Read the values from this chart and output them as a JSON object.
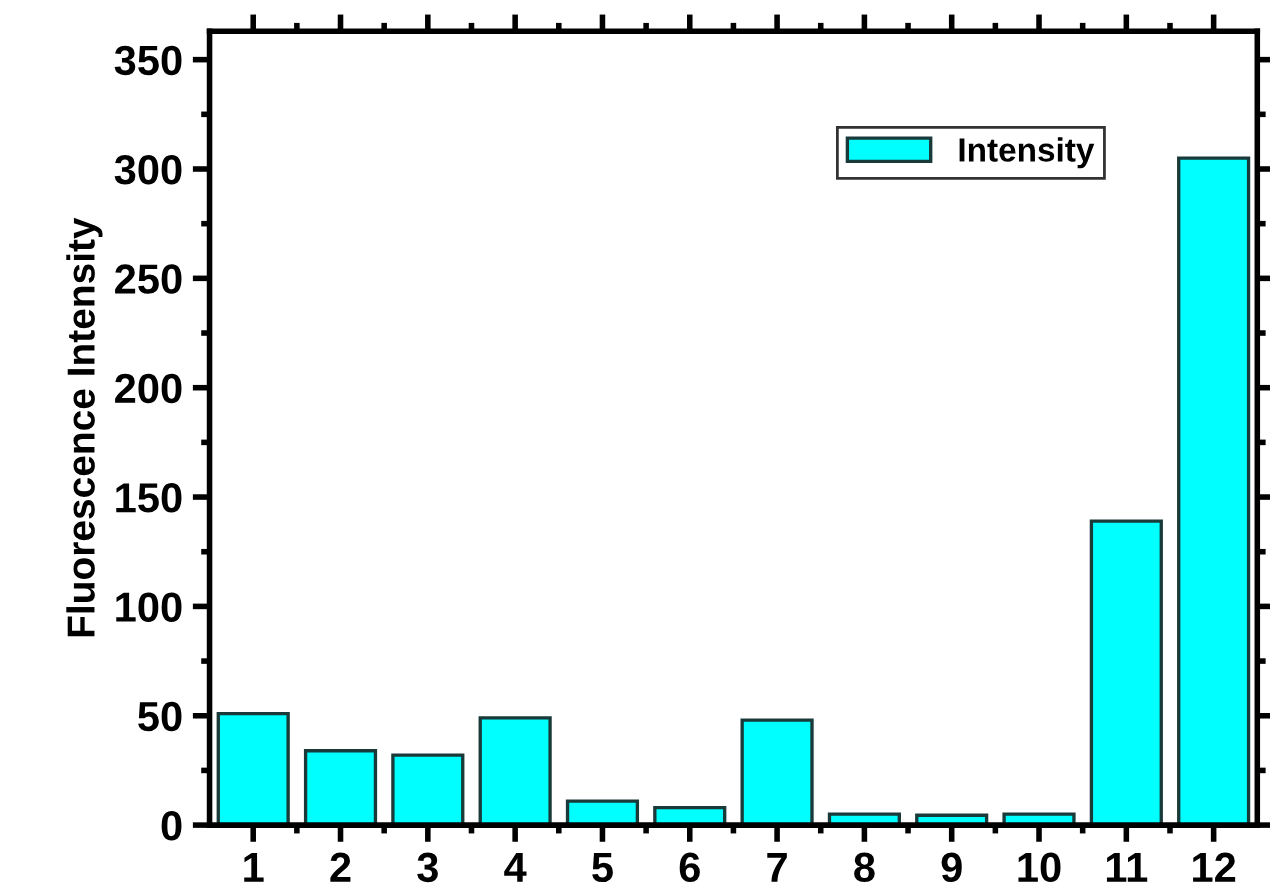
{
  "chart_data": {
    "type": "bar",
    "ylabel": "Fluorescence Intensity",
    "categories": [
      "1",
      "2",
      "3",
      "4",
      "5",
      "6",
      "7",
      "8",
      "9",
      "10",
      "11",
      "12"
    ],
    "series": [
      {
        "name": "Intensity",
        "color": "#00ffff",
        "values": [
          51,
          34,
          32,
          49,
          11,
          8,
          48,
          5,
          4.5,
          5,
          139,
          305
        ]
      }
    ],
    "ylim": [
      0,
      363
    ],
    "yticks": [
      0,
      50,
      100,
      150,
      200,
      250,
      300,
      350
    ],
    "grid": false,
    "legend": "top right"
  }
}
